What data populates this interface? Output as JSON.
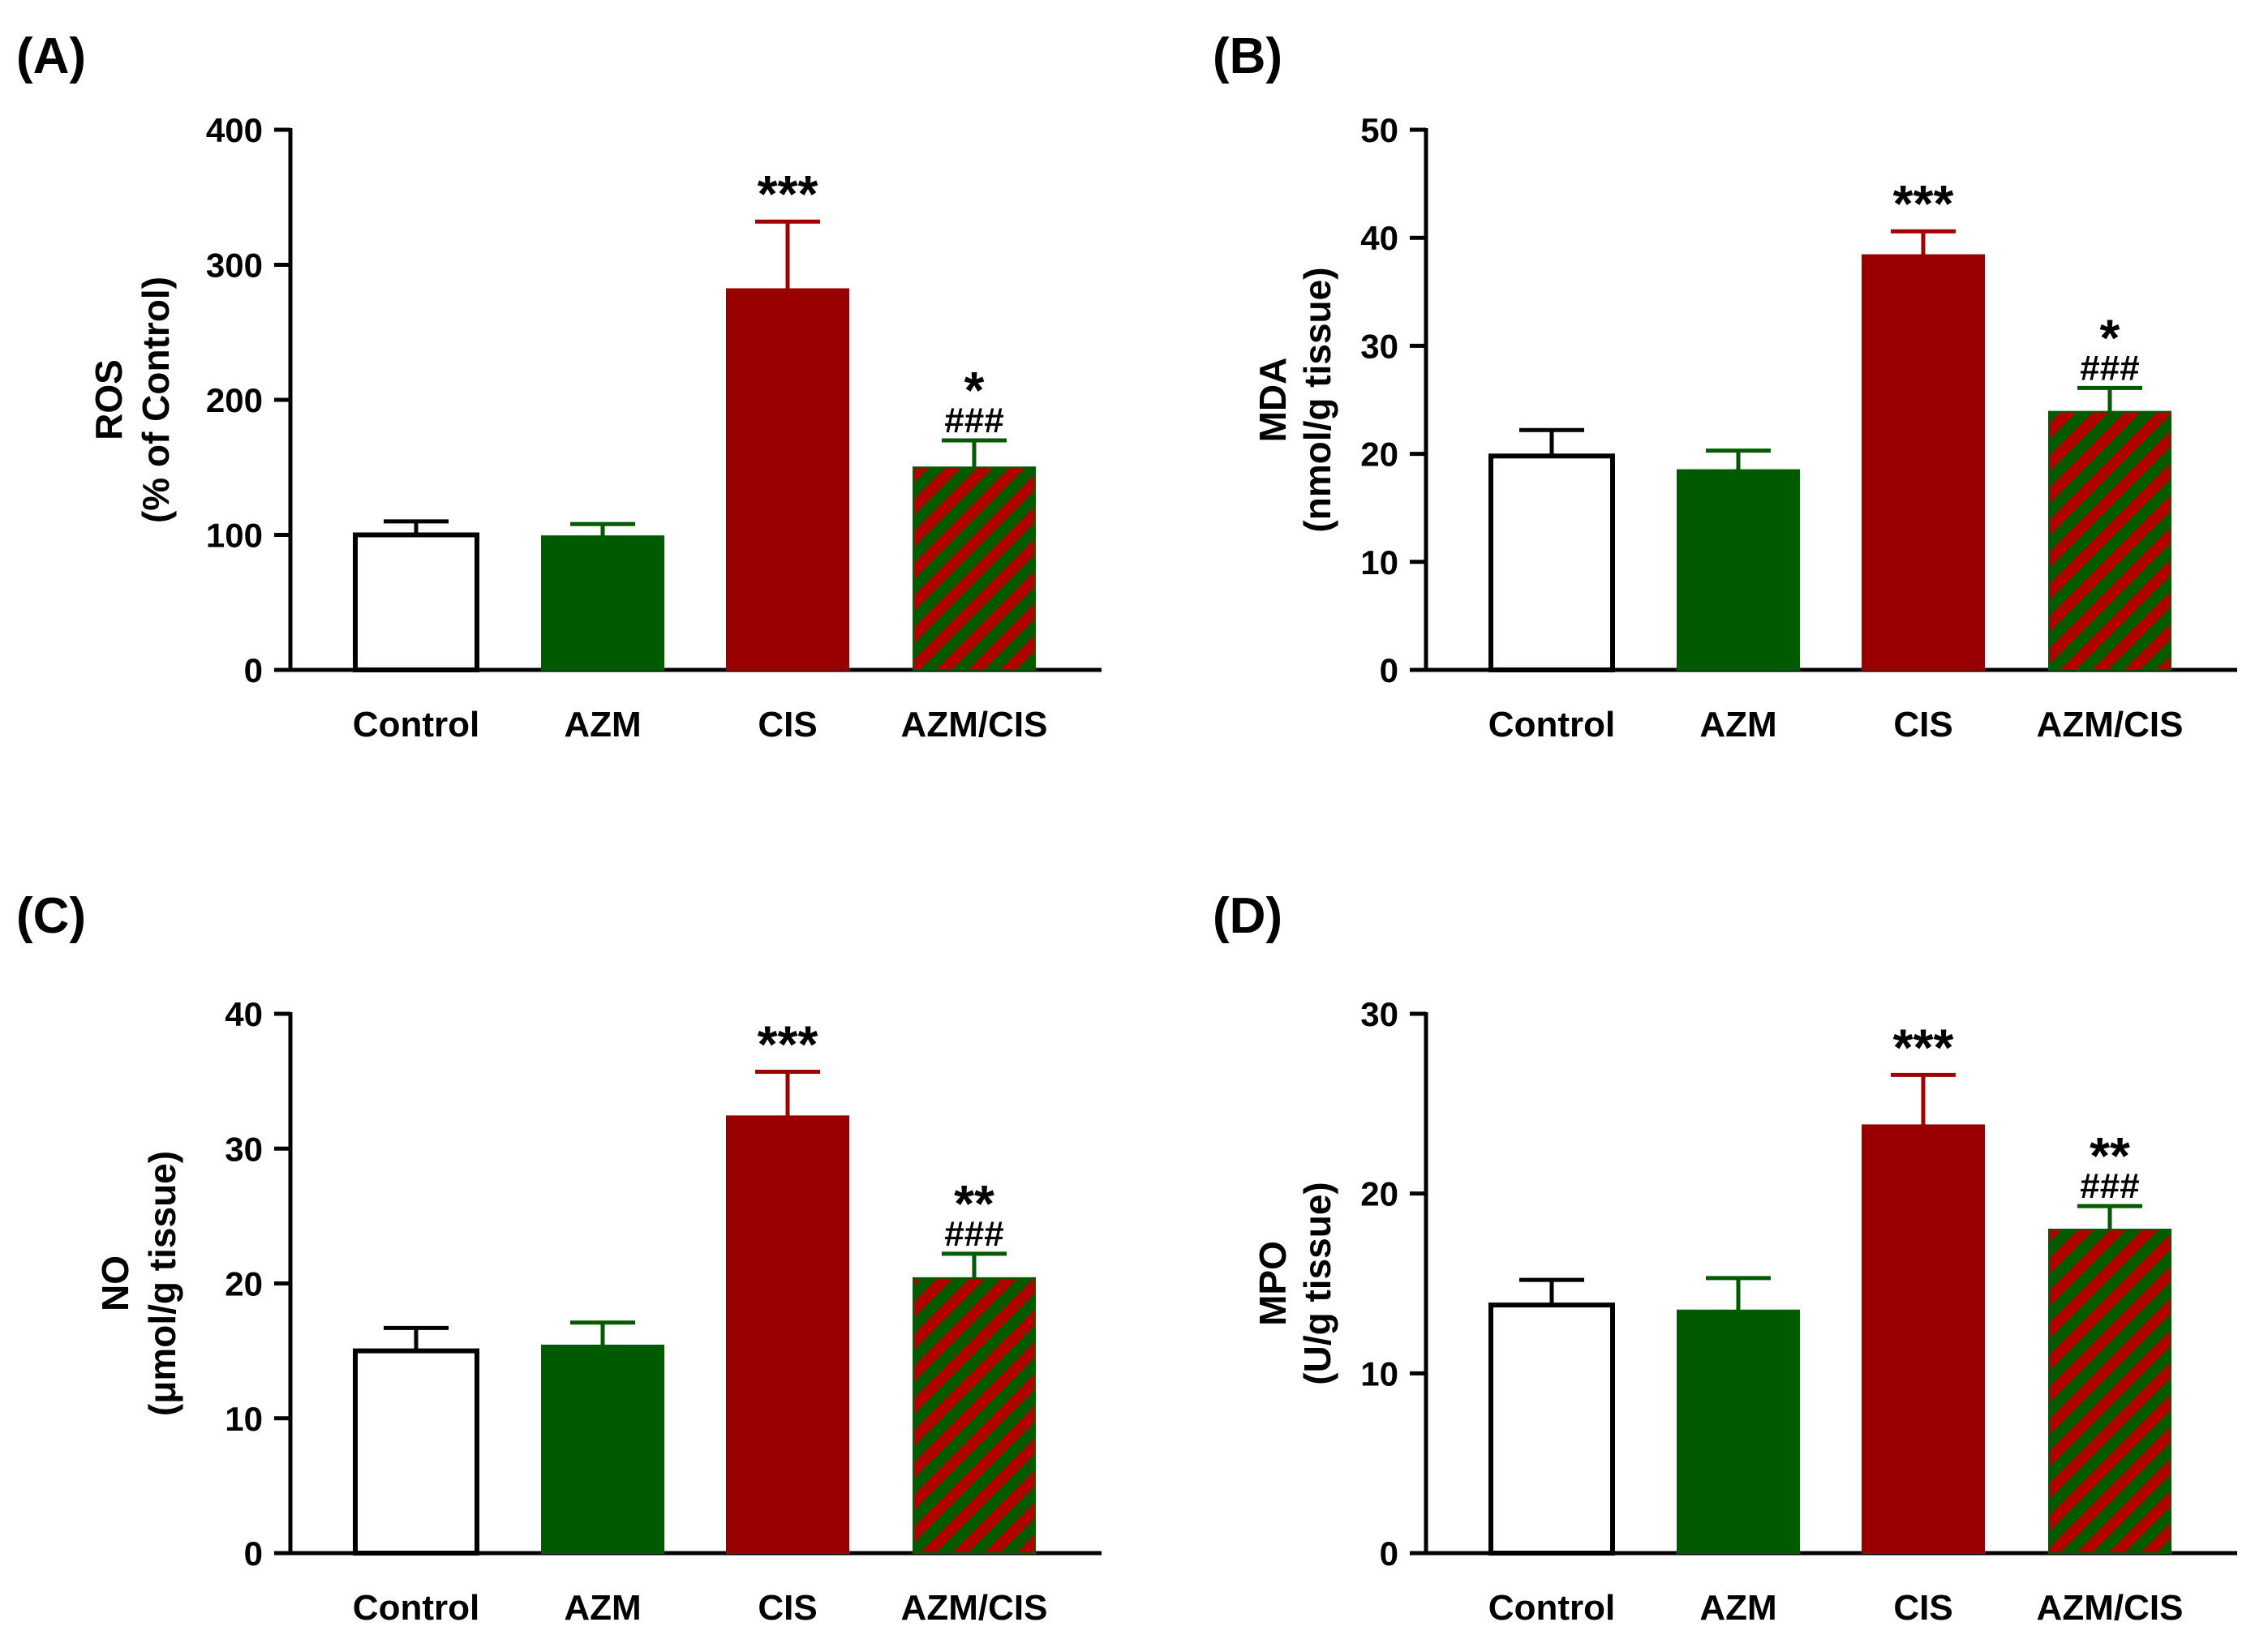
{
  "figure": {
    "colors": {
      "Control": "#ffffff",
      "AZM": "#005a00",
      "CIS": "#990000",
      "AZM/CIS": "hatched-red-green"
    }
  },
  "chart_data": [
    {
      "type": "bar",
      "panel_label": "(A)",
      "ylabel_line1": "ROS",
      "ylabel_line2": "(% of Control)",
      "categories": [
        "Control",
        "AZM",
        "CIS",
        "AZM/CIS"
      ],
      "values": [
        100,
        99,
        282,
        150
      ],
      "errors": [
        10,
        9,
        50,
        20
      ],
      "ylim": [
        0,
        400
      ],
      "yticks": [
        0,
        100,
        200,
        300,
        400
      ],
      "significance": [
        "",
        "",
        "***",
        "*\n###"
      ]
    },
    {
      "type": "bar",
      "panel_label": "(B)",
      "ylabel_line1": "MDA",
      "ylabel_line2": "(nmol/g tissue)",
      "categories": [
        "Control",
        "AZM",
        "CIS",
        "AZM/CIS"
      ],
      "values": [
        19.8,
        18.5,
        38.4,
        23.9
      ],
      "errors": [
        2.4,
        1.8,
        2.2,
        2.2
      ],
      "ylim": [
        0,
        50
      ],
      "yticks": [
        0,
        10,
        20,
        30,
        40,
        50
      ],
      "significance": [
        "",
        "",
        "***",
        "*\n###"
      ]
    },
    {
      "type": "bar",
      "panel_label": "(C)",
      "ylabel_line1": "NO",
      "ylabel_line2": "(μmol/g tissue)",
      "categories": [
        "Control",
        "AZM",
        "CIS",
        "AZM/CIS"
      ],
      "values": [
        15.0,
        15.4,
        32.4,
        20.4
      ],
      "errors": [
        1.7,
        1.7,
        3.3,
        1.8
      ],
      "ylim": [
        0,
        40
      ],
      "yticks": [
        0,
        10,
        20,
        30,
        40
      ],
      "significance": [
        "",
        "",
        "***",
        "**\n###"
      ]
    },
    {
      "type": "bar",
      "panel_label": "(D)",
      "ylabel_line1": "MPO",
      "ylabel_line2": "(U/g tissue)",
      "categories": [
        "Control",
        "AZM",
        "CIS",
        "AZM/CIS"
      ],
      "values": [
        13.8,
        13.5,
        23.8,
        18.0
      ],
      "errors": [
        1.4,
        1.8,
        2.8,
        1.3
      ],
      "ylim": [
        0,
        30
      ],
      "yticks": [
        0,
        10,
        20,
        30
      ],
      "significance": [
        "",
        "",
        "***",
        "**\n###"
      ]
    }
  ]
}
